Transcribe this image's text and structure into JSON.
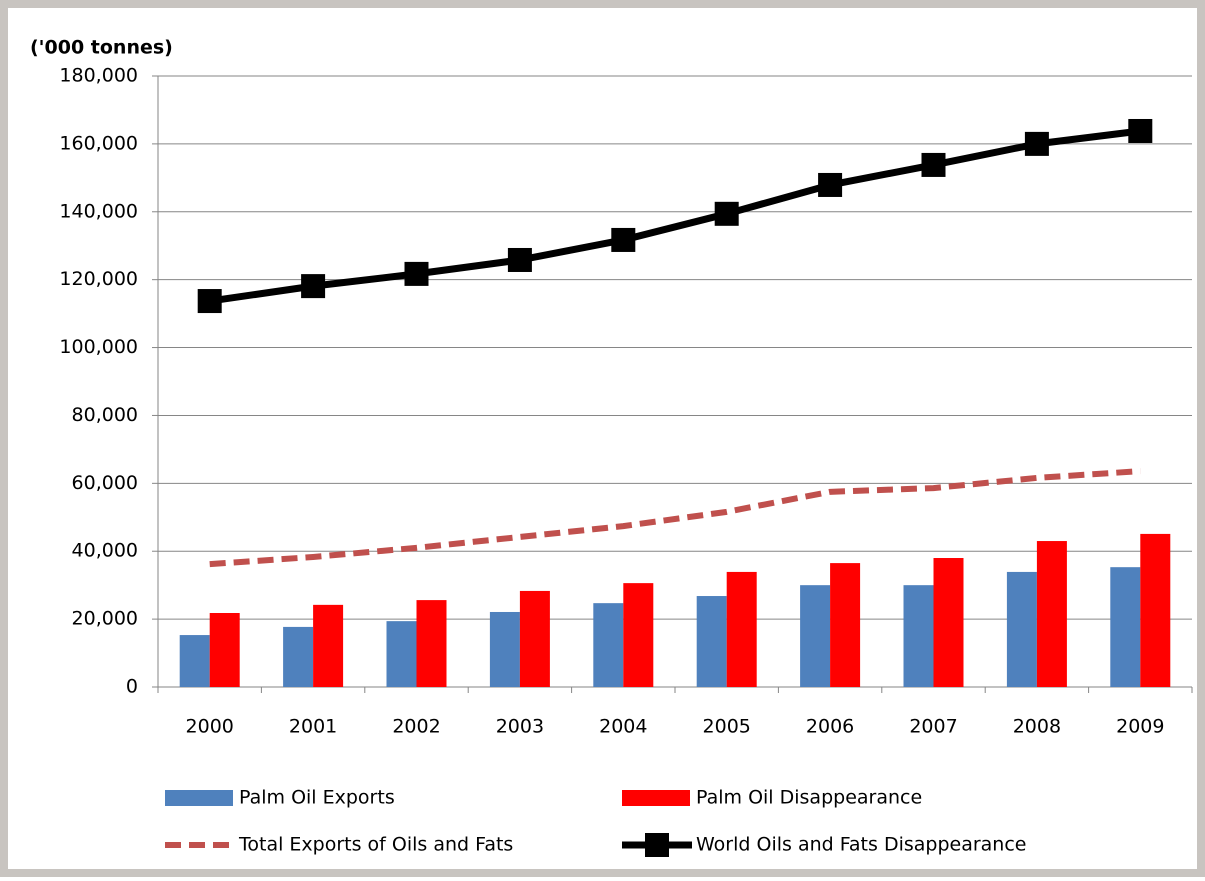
{
  "chart_data": {
    "type": "bar",
    "y_axis_label": "('000 tonnes)",
    "categories": [
      "2000",
      "2001",
      "2002",
      "2003",
      "2004",
      "2005",
      "2006",
      "2007",
      "2008",
      "2009"
    ],
    "series": [
      {
        "name": "Palm Oil Exports",
        "type": "bar",
        "color": "#4f81bd",
        "values": [
          15300,
          17700,
          19400,
          22100,
          24700,
          26800,
          30000,
          30000,
          33900,
          35300
        ]
      },
      {
        "name": "Palm Oil Disappearance",
        "type": "bar",
        "color": "#ff0000",
        "values": [
          21800,
          24200,
          25600,
          28300,
          30600,
          33900,
          36500,
          38000,
          43000,
          45100
        ]
      },
      {
        "name": "Total Exports of Oils and Fats",
        "type": "line",
        "dashed": true,
        "color": "#c0504d",
        "values": [
          36200,
          38300,
          41000,
          44200,
          47400,
          51600,
          57500,
          58600,
          61600,
          63600
        ]
      },
      {
        "name": "World Oils and Fats Disappearance",
        "type": "line",
        "marker": "square",
        "color": "#000000",
        "values": [
          113700,
          118100,
          121700,
          125800,
          131700,
          139400,
          147900,
          153800,
          160000,
          163800
        ]
      }
    ],
    "ylim": [
      0,
      180000
    ],
    "yticks": [
      0,
      {
        "value": 20000,
        "label": "20,000"
      },
      {
        "value": 40000,
        "label": "40,000"
      },
      {
        "value": 60000,
        "label": "60,000"
      },
      {
        "value": 80000,
        "label": "80,000"
      },
      {
        "value": 100000,
        "label": "100,000"
      },
      {
        "value": 120000,
        "label": "120,000"
      },
      {
        "value": 140000,
        "label": "140,000"
      },
      {
        "value": 160000,
        "label": "160,000"
      },
      {
        "value": 180000,
        "label": "180,000"
      }
    ],
    "grid": true,
    "legend": "bottom"
  }
}
